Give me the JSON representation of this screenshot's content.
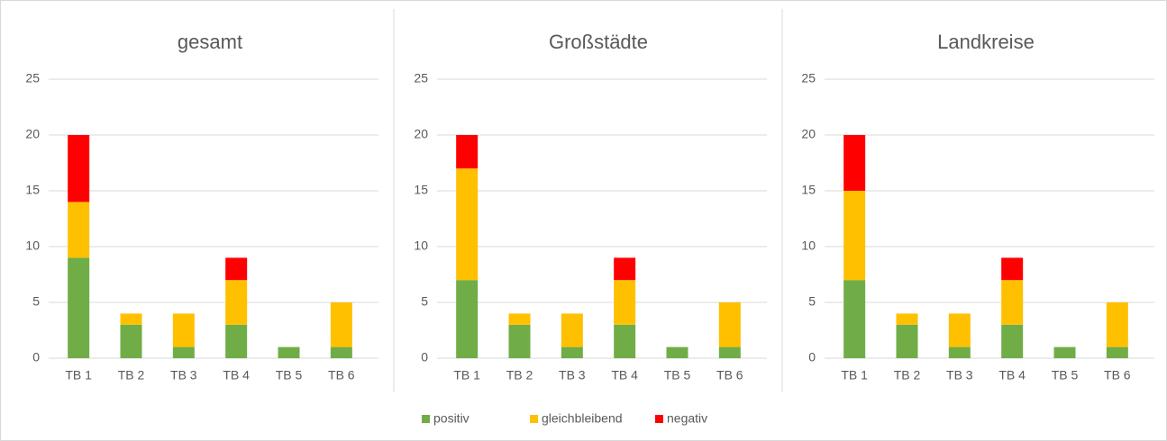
{
  "legend": [
    {
      "name": "positiv",
      "color": "#70ad47"
    },
    {
      "name": "gleichbleibend",
      "color": "#ffc000"
    },
    {
      "name": "negativ",
      "color": "#ff0000"
    }
  ],
  "chart_data": [
    {
      "type": "bar",
      "stacked": true,
      "title": "gesamt",
      "categories": [
        "TB 1",
        "TB 2",
        "TB 3",
        "TB 4",
        "TB 5",
        "TB 6"
      ],
      "series": [
        {
          "values": [
            9,
            3,
            1,
            3,
            1,
            1
          ]
        },
        {
          "values": [
            5,
            1,
            3,
            4,
            0,
            4
          ]
        },
        {
          "values": [
            6,
            0,
            0,
            2,
            0,
            0
          ]
        }
      ],
      "ylim": [
        0,
        25
      ],
      "yticks": [
        0,
        5,
        10,
        15,
        20,
        25
      ],
      "grid": true
    },
    {
      "type": "bar",
      "stacked": true,
      "title": "Großstädte",
      "categories": [
        "TB 1",
        "TB 2",
        "TB 3",
        "TB 4",
        "TB 5",
        "TB 6"
      ],
      "series": [
        {
          "values": [
            7,
            3,
            1,
            3,
            1,
            1
          ]
        },
        {
          "values": [
            10,
            1,
            3,
            4,
            0,
            4
          ]
        },
        {
          "values": [
            3,
            0,
            0,
            2,
            0,
            0
          ]
        }
      ],
      "ylim": [
        0,
        25
      ],
      "yticks": [
        0,
        5,
        10,
        15,
        20,
        25
      ],
      "grid": true
    },
    {
      "type": "bar",
      "stacked": true,
      "title": "Landkreise",
      "categories": [
        "TB 1",
        "TB 2",
        "TB 3",
        "TB 4",
        "TB 5",
        "TB 6"
      ],
      "series": [
        {
          "values": [
            7,
            3,
            1,
            3,
            1,
            1
          ]
        },
        {
          "values": [
            8,
            1,
            3,
            4,
            0,
            4
          ]
        },
        {
          "values": [
            5,
            0,
            0,
            2,
            0,
            0
          ]
        }
      ],
      "ylim": [
        0,
        25
      ],
      "yticks": [
        0,
        5,
        10,
        15,
        20,
        25
      ],
      "grid": true
    }
  ]
}
